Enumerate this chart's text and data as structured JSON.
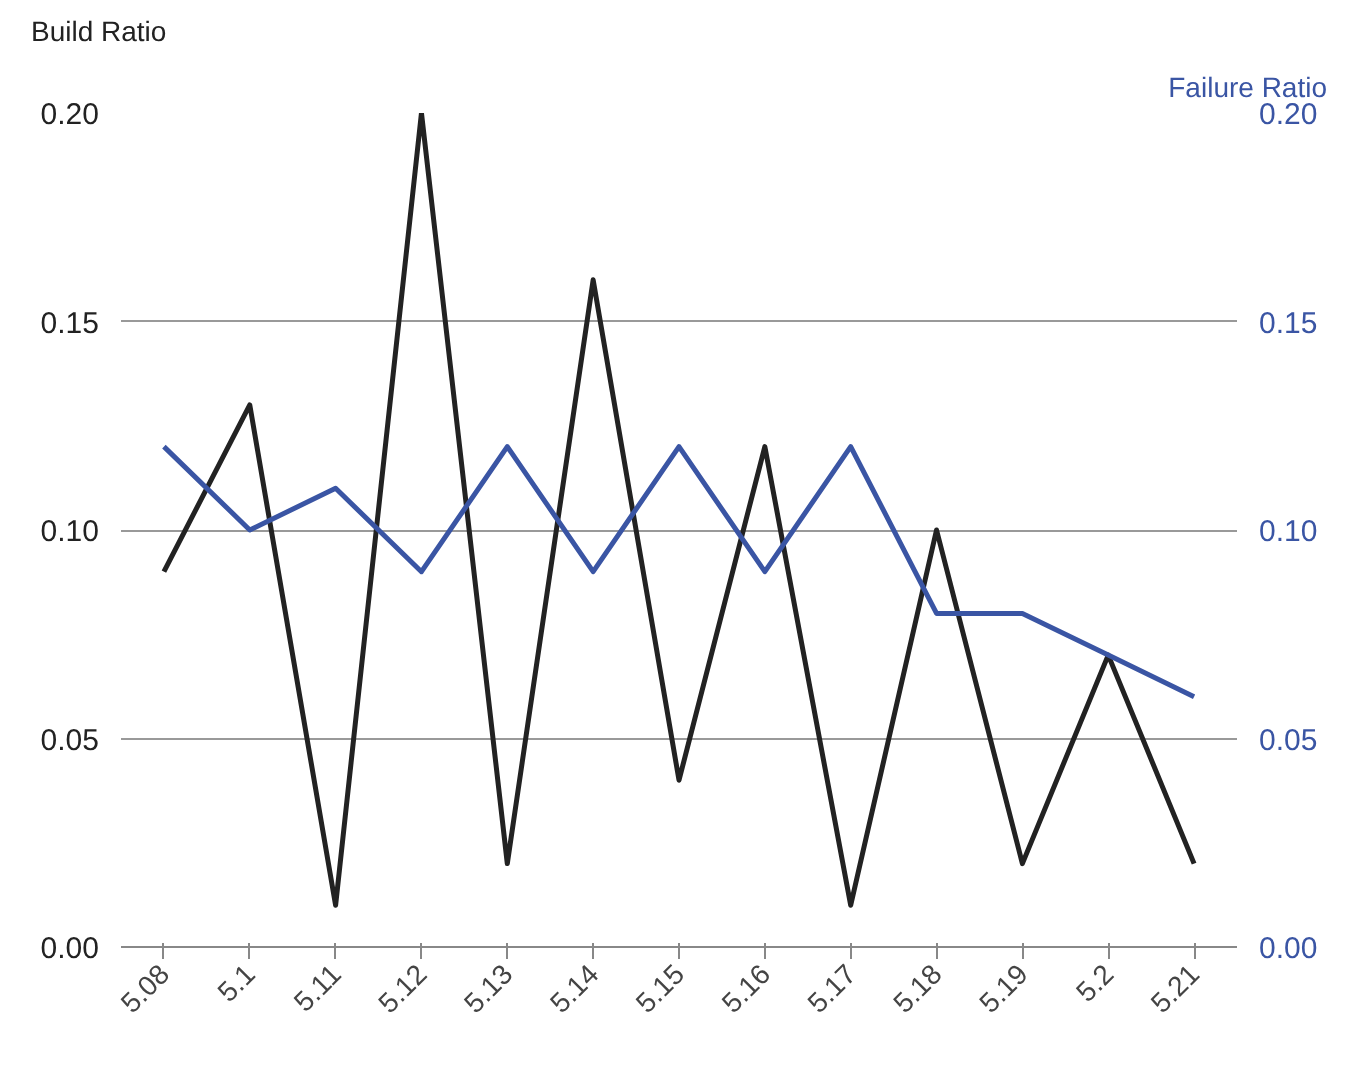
{
  "chart_data": {
    "type": "line",
    "ylabel": "Build Ratio",
    "y2label": "Failure Ratio",
    "categories": [
      "5.08",
      "5.1",
      "5.11",
      "5.12",
      "5.13",
      "5.14",
      "5.15",
      "5.16",
      "5.17",
      "5.18",
      "5.19",
      "5.2",
      "5.21"
    ],
    "series": [
      {
        "color": "#222222",
        "values": [
          0.09,
          0.13,
          0.01,
          0.2,
          0.02,
          0.16,
          0.04,
          0.12,
          0.01,
          0.1,
          0.02,
          0.07,
          0.02
        ]
      },
      {
        "color": "#3a55a4",
        "axis": "y2",
        "values": [
          0.12,
          0.1,
          0.11,
          0.09,
          0.12,
          0.09,
          0.12,
          0.09,
          0.12,
          0.08,
          0.08,
          0.07,
          0.06
        ]
      }
    ],
    "ylim": [
      0,
      0.2
    ],
    "yticks": [
      {
        "value": 0,
        "label": "0.00"
      },
      {
        "value": 0.05,
        "label": "0.05"
      },
      {
        "value": 0.1,
        "label": "0.10"
      },
      {
        "value": 0.15,
        "label": "0.15"
      },
      {
        "value": 0.2,
        "label": "0.20"
      }
    ],
    "y2lim": [
      0,
      0.2
    ],
    "y2ticks": [
      {
        "value": 0,
        "label": "0.00"
      },
      {
        "value": 0.05,
        "label": "0.05"
      },
      {
        "value": 0.1,
        "label": "0.10"
      },
      {
        "value": 0.15,
        "label": "0.15"
      },
      {
        "value": 0.2,
        "label": "0.20"
      }
    ],
    "grid": "y",
    "line_style": "solid",
    "marker": "none"
  }
}
